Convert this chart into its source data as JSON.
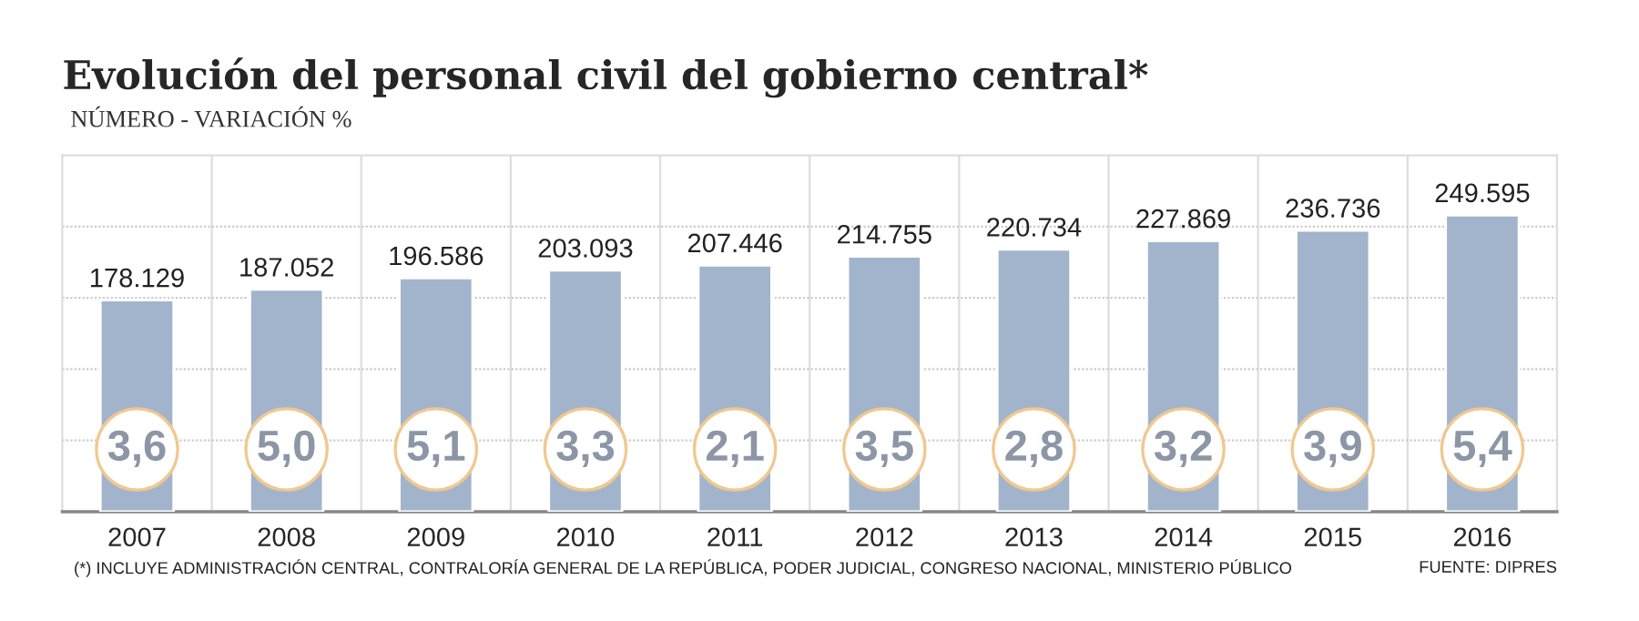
{
  "chart_data": {
    "type": "bar",
    "title": "Evolución del personal civil del gobierno central*",
    "subtitle": "NÚMERO - VARIACIÓN %",
    "categories": [
      "2007",
      "2008",
      "2009",
      "2010",
      "2011",
      "2012",
      "2013",
      "2014",
      "2015",
      "2016"
    ],
    "values": [
      178129,
      187052,
      196586,
      203093,
      207446,
      214755,
      220734,
      227869,
      236736,
      249595
    ],
    "value_labels": [
      "178.129",
      "187.052",
      "196.586",
      "203.093",
      "207.446",
      "214.755",
      "220.734",
      "227.869",
      "236.736",
      "249.595"
    ],
    "color": "#a2b4cc",
    "ylim": [
      0,
      300000
    ],
    "yticks": [
      {
        "value": 0,
        "label": null
      },
      {
        "value": 60000,
        "label": null
      },
      {
        "value": 120000,
        "label": null
      },
      {
        "value": 180000,
        "label": null
      },
      {
        "value": 240000,
        "label": null
      },
      {
        "value": 300000,
        "label": null
      }
    ],
    "tick_labels": "x",
    "grid": "y",
    "legend": false,
    "annotations": [
      "3,6",
      "5,0",
      "5,1",
      "3,3",
      "2,1",
      "3,5",
      "2,8",
      "3,2",
      "3,9",
      "5,4",
      "(*) INCLUYE ADMINISTRACIÓN CENTRAL, CONTRALORÍA GENERAL DE LA REPÚBLICA, PODER JUDICIAL, CONGRESO NACIONAL, MINISTERIO PÚBLICO",
      "FUENTE: DIPRES"
    ]
  }
}
